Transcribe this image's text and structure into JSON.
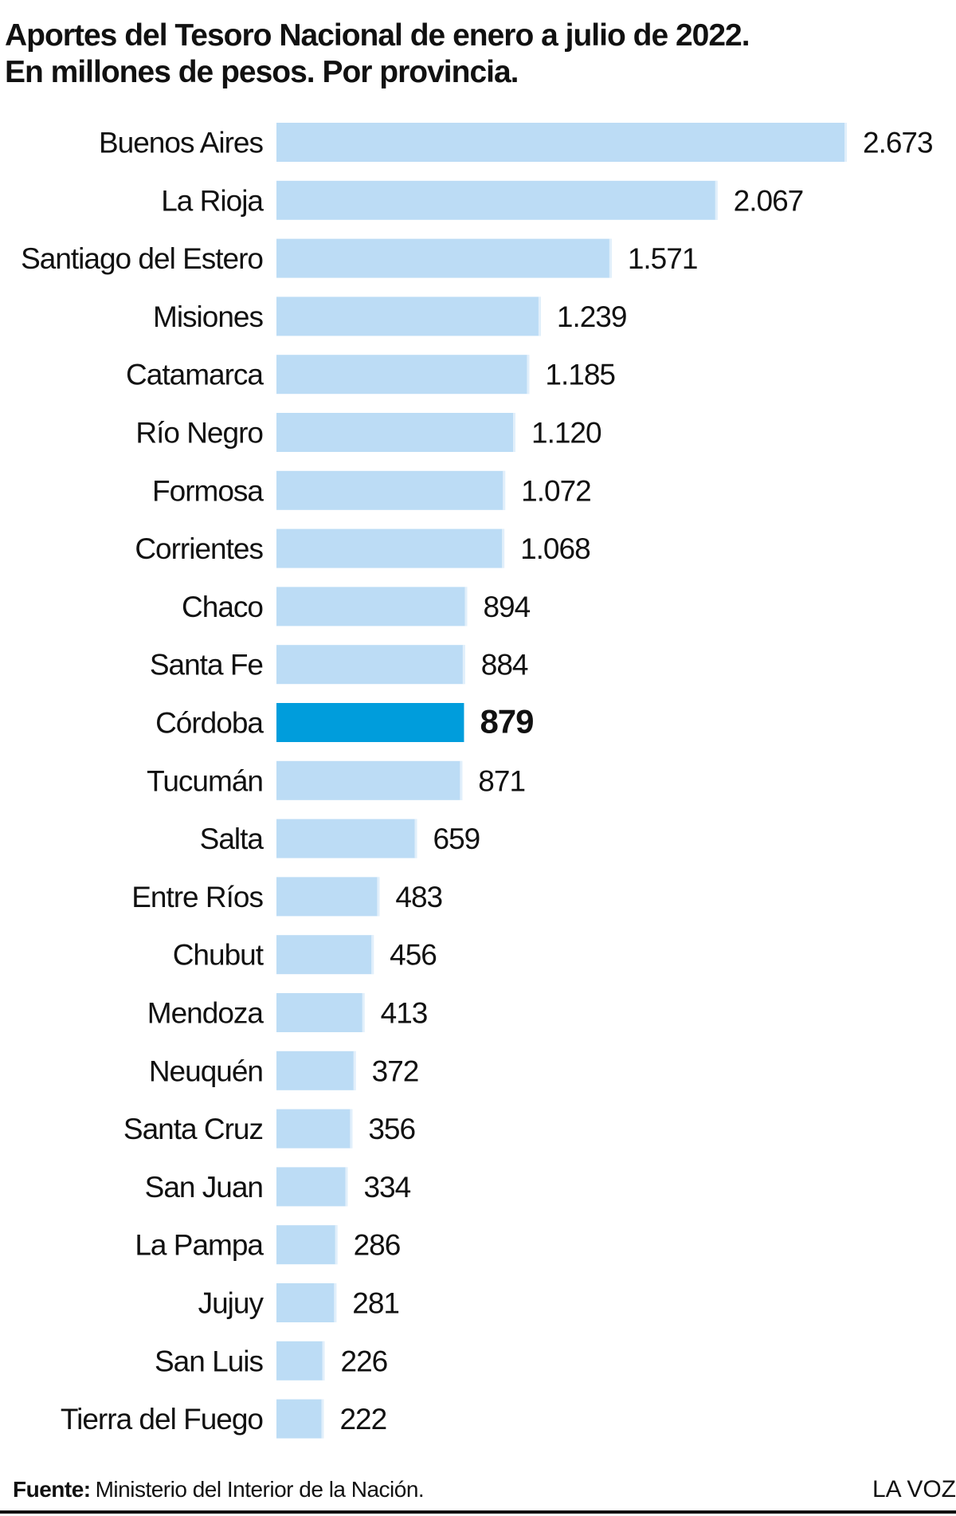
{
  "header": {
    "title_line1": "Aportes del Tesoro Nacional de enero a julio de 2022.",
    "title_line2": "En millones de pesos. Por provincia."
  },
  "footer": {
    "source_label": "Fuente:",
    "source_text": "Ministerio del Interior de la Nación.",
    "brand": "LA VOZ"
  },
  "colors": {
    "bar": "#bcdcf5",
    "highlight": "#009ddc",
    "text": "#111111"
  },
  "chart_data": {
    "type": "bar",
    "orientation": "horizontal",
    "title": "Aportes del Tesoro Nacional de enero a julio de 2022.",
    "subtitle": "En millones de pesos. Por provincia.",
    "xlabel": "",
    "ylabel": "",
    "grid": false,
    "highlighted_category": "Córdoba",
    "categories": [
      "Buenos Aires",
      "La Rioja",
      "Santiago del Estero",
      "Misiones",
      "Catamarca",
      "Río Negro",
      "Formosa",
      "Corrientes",
      "Chaco",
      "Santa Fe",
      "Córdoba",
      "Tucumán",
      "Salta",
      "Entre Ríos",
      "Chubut",
      "Mendoza",
      "Neuquén",
      "Santa Cruz",
      "San Juan",
      "La Pampa",
      "Jujuy",
      "San Luis",
      "Tierra del Fuego"
    ],
    "values": [
      2673,
      2067,
      1571,
      1239,
      1185,
      1120,
      1072,
      1068,
      894,
      884,
      879,
      871,
      659,
      483,
      456,
      413,
      372,
      356,
      334,
      286,
      281,
      226,
      222
    ],
    "value_labels": [
      "2.673",
      "2.067",
      "1.571",
      "1.239",
      "1.185",
      "1.120",
      "1.072",
      "1.068",
      "894",
      "884",
      "879",
      "871",
      "659",
      "483",
      "456",
      "413",
      "372",
      "356",
      "334",
      "286",
      "281",
      "226",
      "222"
    ],
    "xlim": [
      0,
      2673
    ]
  }
}
